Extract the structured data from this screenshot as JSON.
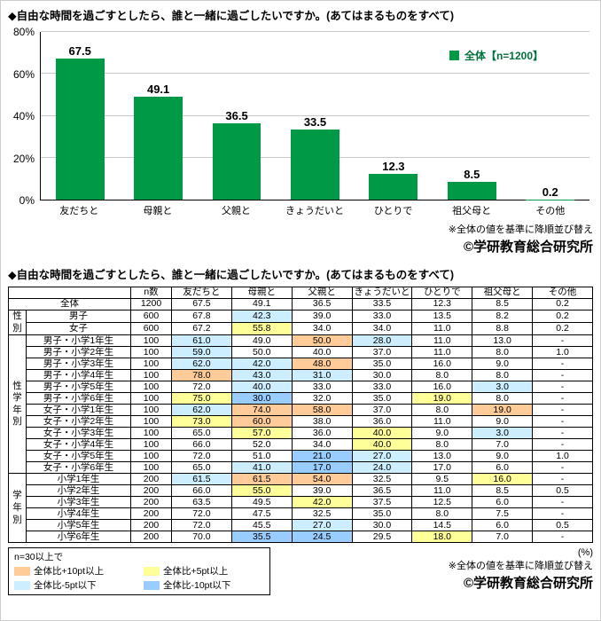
{
  "page": {
    "question_title": "◆自由な時間を過ごすとしたら、誰と一緒に過ごしたいですか。(あてはまるものをすべて)",
    "sort_note": "※全体の値を基準に降順並び替え",
    "copyright": "©学研教育総合研究所",
    "percent_label": "(%)"
  },
  "chart_data": {
    "type": "bar",
    "title": "◆自由な時間を過ごすとしたら、誰と一緒に過ごしたいですか。(あてはまるものをすべて)",
    "categories": [
      "友だちと",
      "母親と",
      "父親と",
      "きょうだいと",
      "ひとりで",
      "祖父母と",
      "その他"
    ],
    "values": [
      67.5,
      49.1,
      36.5,
      33.5,
      12.3,
      8.5,
      0.2
    ],
    "legend": "全体【n=1200】",
    "legend_position": "top-right",
    "bar_color": "#009945",
    "grid": true,
    "ylim": [
      0,
      80
    ],
    "yticks": [
      0,
      20,
      40,
      60,
      80
    ],
    "ytick_labels": [
      "0%",
      "20%",
      "40%",
      "60%",
      "80%"
    ]
  },
  "table": {
    "title": "◆自由な時間を過ごすとしたら、誰と一緒に過ごしたいですか。(あてはまるものをすべて)",
    "col_headers": [
      "n数",
      "友だちと",
      "母親と",
      "父親と",
      "きょうだいと",
      "ひとりで",
      "祖父母と",
      "その他"
    ],
    "overall_baseline": [
      67.5,
      49.1,
      36.5,
      33.5,
      12.3,
      8.5,
      0.2
    ],
    "groups": [
      {
        "label": "",
        "rows": [
          {
            "label": "全体",
            "n": "1200",
            "values": [
              "67.5",
              "49.1",
              "36.5",
              "33.5",
              "12.3",
              "8.5",
              "0.2"
            ]
          }
        ]
      },
      {
        "label": "性別",
        "rows": [
          {
            "label": "男子",
            "n": "600",
            "values": [
              "67.8",
              "42.3",
              "39.0",
              "33.0",
              "13.5",
              "8.2",
              "0.2"
            ]
          },
          {
            "label": "女子",
            "n": "600",
            "values": [
              "67.2",
              "55.8",
              "34.0",
              "34.0",
              "11.0",
              "8.8",
              "0.2"
            ]
          }
        ]
      },
      {
        "label": "性学年別",
        "rows": [
          {
            "label": "男子・小学1年生",
            "n": "100",
            "values": [
              "61.0",
              "49.0",
              "50.0",
              "28.0",
              "11.0",
              "13.0",
              "-"
            ]
          },
          {
            "label": "男子・小学2年生",
            "n": "100",
            "values": [
              "59.0",
              "50.0",
              "40.0",
              "37.0",
              "11.0",
              "8.0",
              "1.0"
            ]
          },
          {
            "label": "男子・小学3年生",
            "n": "100",
            "values": [
              "62.0",
              "42.0",
              "48.0",
              "35.0",
              "16.0",
              "9.0",
              "-"
            ]
          },
          {
            "label": "男子・小学4年生",
            "n": "100",
            "values": [
              "78.0",
              "43.0",
              "31.0",
              "30.0",
              "8.0",
              "8.0",
              "-"
            ]
          },
          {
            "label": "男子・小学5年生",
            "n": "100",
            "values": [
              "72.0",
              "40.0",
              "33.0",
              "33.0",
              "16.0",
              "3.0",
              "-"
            ]
          },
          {
            "label": "男子・小学6年生",
            "n": "100",
            "values": [
              "75.0",
              "30.0",
              "32.0",
              "35.0",
              "19.0",
              "8.0",
              "-"
            ]
          },
          {
            "label": "女子・小学1年生",
            "n": "100",
            "values": [
              "62.0",
              "74.0",
              "58.0",
              "37.0",
              "8.0",
              "19.0",
              "-"
            ]
          },
          {
            "label": "女子・小学2年生",
            "n": "100",
            "values": [
              "73.0",
              "60.0",
              "38.0",
              "36.0",
              "11.0",
              "9.0",
              "-"
            ]
          },
          {
            "label": "女子・小学3年生",
            "n": "100",
            "values": [
              "65.0",
              "57.0",
              "36.0",
              "40.0",
              "9.0",
              "3.0",
              "-"
            ]
          },
          {
            "label": "女子・小学4年生",
            "n": "100",
            "values": [
              "66.0",
              "52.0",
              "34.0",
              "40.0",
              "8.0",
              "7.0",
              "-"
            ]
          },
          {
            "label": "女子・小学5年生",
            "n": "100",
            "values": [
              "72.0",
              "51.0",
              "21.0",
              "27.0",
              "13.0",
              "9.0",
              "1.0"
            ]
          },
          {
            "label": "女子・小学6年生",
            "n": "100",
            "values": [
              "65.0",
              "41.0",
              "17.0",
              "24.0",
              "17.0",
              "6.0",
              "-"
            ]
          }
        ]
      },
      {
        "label": "学年別",
        "rows": [
          {
            "label": "小学1年生",
            "n": "200",
            "values": [
              "61.5",
              "61.5",
              "54.0",
              "32.5",
              "9.5",
              "16.0",
              "-"
            ]
          },
          {
            "label": "小学2年生",
            "n": "200",
            "values": [
              "66.0",
              "55.0",
              "39.0",
              "36.5",
              "11.0",
              "8.5",
              "0.5"
            ]
          },
          {
            "label": "小学3年生",
            "n": "200",
            "values": [
              "63.5",
              "49.5",
              "42.0",
              "37.5",
              "12.5",
              "6.0",
              "-"
            ]
          },
          {
            "label": "小学4年生",
            "n": "200",
            "values": [
              "72.0",
              "47.5",
              "32.5",
              "35.0",
              "8.0",
              "7.5",
              "-"
            ]
          },
          {
            "label": "小学5年生",
            "n": "200",
            "values": [
              "72.0",
              "45.5",
              "27.0",
              "30.0",
              "14.5",
              "6.0",
              "0.5"
            ]
          },
          {
            "label": "小学6年生",
            "n": "200",
            "values": [
              "70.0",
              "35.5",
              "24.5",
              "29.5",
              "18.0",
              "7.0",
              "-"
            ]
          }
        ]
      }
    ]
  },
  "highlight_legend": {
    "condition": "n=30以上で",
    "items": [
      {
        "key": "p10",
        "label": "全体比+10pt以上",
        "color": "#FFCC99"
      },
      {
        "key": "p5",
        "label": "全体比+5pt以上",
        "color": "#FFFF99"
      },
      {
        "key": "m5",
        "label": "全体比-5pt以下",
        "color": "#CCEEFF"
      },
      {
        "key": "m10",
        "label": "全体比-10pt以下",
        "color": "#99CCFF"
      }
    ]
  }
}
